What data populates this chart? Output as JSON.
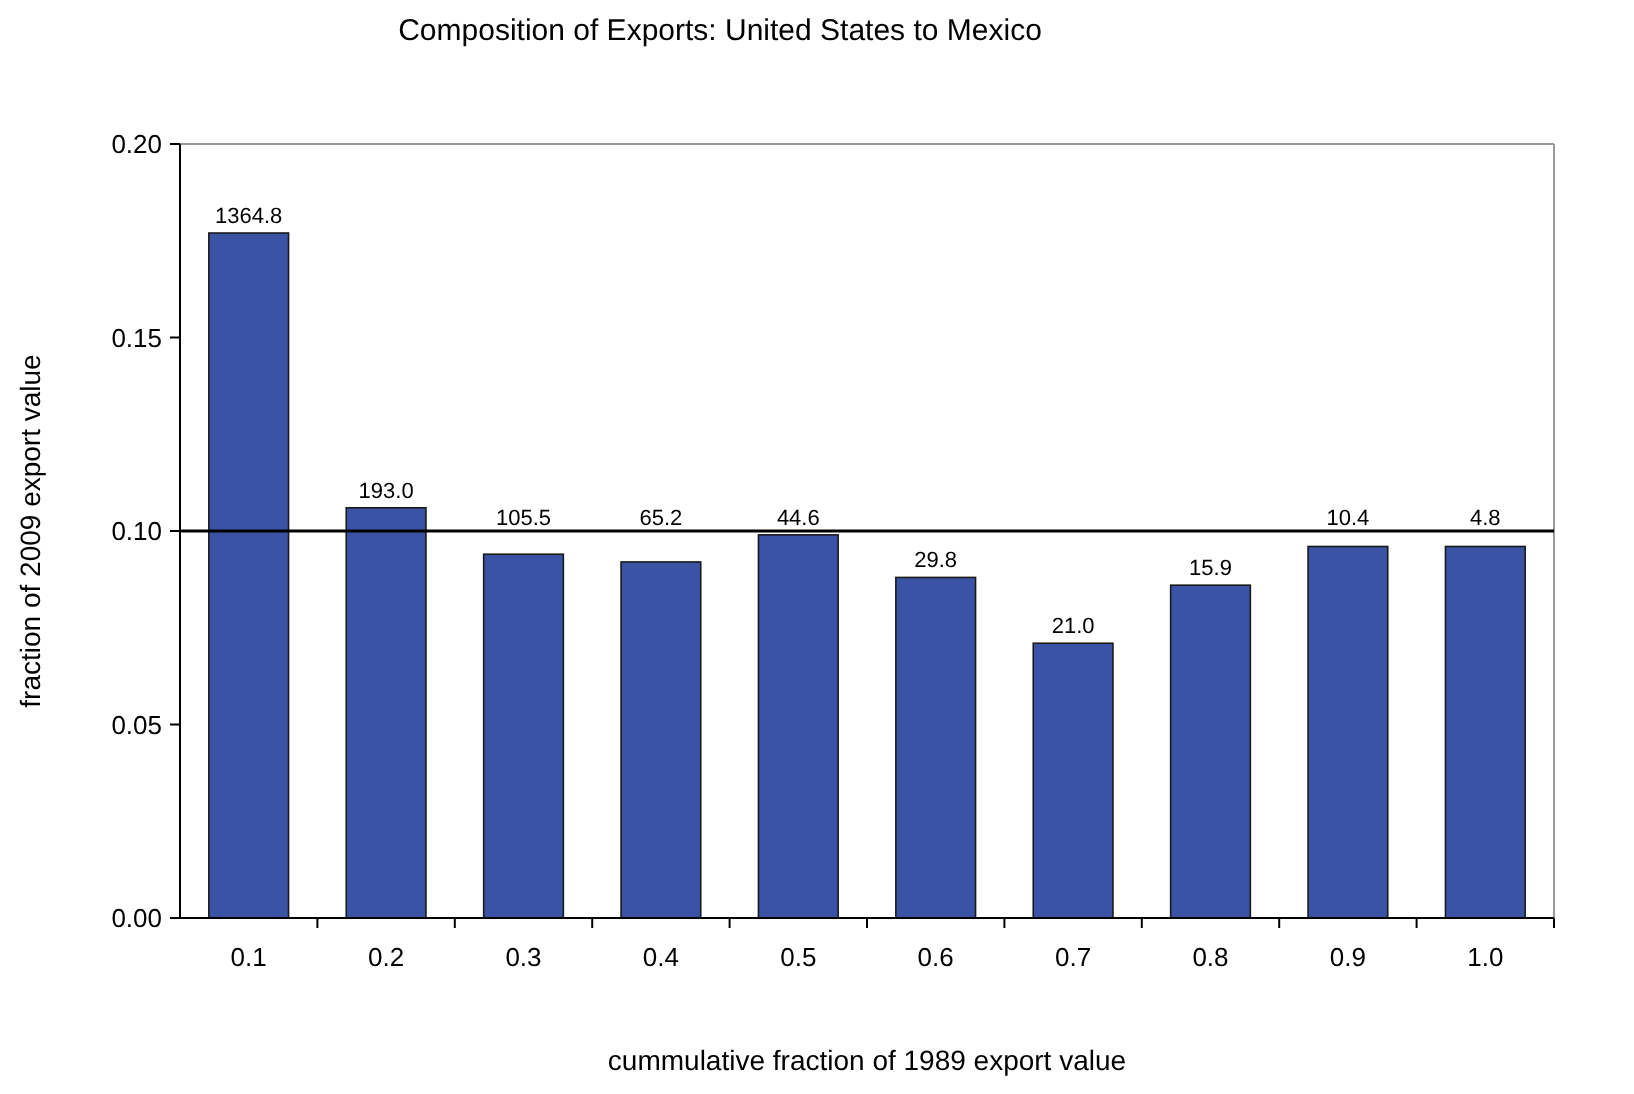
{
  "chart_data": {
    "type": "bar",
    "title": "Composition of Exports: United States to Mexico",
    "xlabel": "cummulative fraction of 1989 export value",
    "ylabel": "fraction of 2009 export value",
    "categories": [
      "0.1",
      "0.2",
      "0.3",
      "0.4",
      "0.5",
      "0.6",
      "0.7",
      "0.8",
      "0.9",
      "1.0"
    ],
    "values": [
      0.177,
      0.106,
      0.094,
      0.092,
      0.099,
      0.088,
      0.071,
      0.086,
      0.096,
      0.096
    ],
    "annotations": [
      {
        "text": "1364.8",
        "x": "0.1",
        "y": 0.177
      },
      {
        "text": "193.0",
        "x": "0.2",
        "y": 0.106
      },
      {
        "text": "105.5",
        "x": "0.3",
        "y": 0.094
      },
      {
        "text": "65.2",
        "x": "0.4",
        "y": 0.092
      },
      {
        "text": "44.6",
        "x": "0.5",
        "y": 0.099
      },
      {
        "text": "29.8",
        "x": "0.6",
        "y": 0.088
      },
      {
        "text": "21.0",
        "x": "0.7",
        "y": 0.071
      },
      {
        "text": "15.9",
        "x": "0.8",
        "y": 0.086
      },
      {
        "text": "10.4",
        "x": "0.9",
        "y": 0.096
      },
      {
        "text": "4.8",
        "x": "1.0",
        "y": 0.096
      }
    ],
    "color": "#3a53a4",
    "ylim": [
      0,
      0.2
    ],
    "yticks": [
      {
        "value": 0,
        "label": "0.00"
      },
      {
        "value": 0.05,
        "label": "0.05"
      },
      {
        "value": 0.1,
        "label": "0.10"
      },
      {
        "value": 0.15,
        "label": "0.15"
      },
      {
        "value": 0.2,
        "label": "0.20"
      }
    ],
    "ref_lines": [
      {
        "axis": "y",
        "value": 0.1,
        "color": "#000000"
      }
    ],
    "grid": false
  }
}
